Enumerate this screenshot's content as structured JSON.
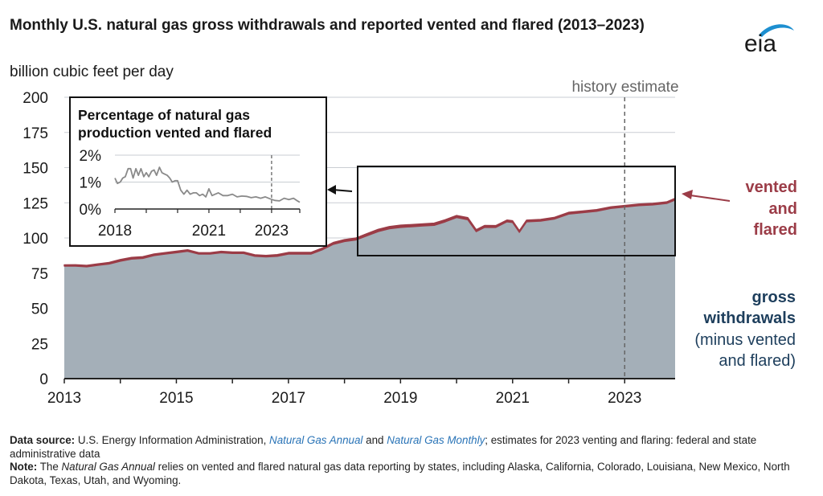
{
  "title": "Monthly U.S. natural gas gross withdrawals and reported vented and flared (2013–2023)",
  "subtitle": "billion cubic feet per day",
  "logo_text": "eia",
  "colors": {
    "area_fill": "#a4afb8",
    "vented_flared": "#9b3c47",
    "gross_label": "#1d3e5c",
    "grid": "#c9ced3",
    "axis": "#222222",
    "estimate_line": "#666666",
    "inset_line": "#8a8a8a",
    "link": "#2a74b7",
    "logo_swoosh": "#1d8fd0"
  },
  "annotations": {
    "history_estimate": "history estimate",
    "vented_flared": [
      "vented",
      "and",
      "flared"
    ],
    "gross_withdrawals": [
      "gross",
      "withdrawals",
      "(minus vented",
      "and flared)"
    ]
  },
  "footnotes": {
    "source_label": "Data source:",
    "source_prefix": "U.S. Energy Information Administration,",
    "source_link1": "Natural Gas Annual",
    "source_and": "and",
    "source_link2": "Natural Gas Monthly",
    "source_suffix": "; estimates for 2023 venting and flaring: federal and state administrative data",
    "note_label": "Note:",
    "note_prefix": "The",
    "note_italic": "Natural Gas Annual",
    "note_suffix": "relies on vented and flared natural gas data reporting by states, including Alaska, California, Colorado, Louisiana, New Mexico, North Dakota, Texas, Utah, and Wyoming."
  },
  "chart_data": [
    {
      "type": "area",
      "title": "Monthly U.S. natural gas gross withdrawals and reported vented and flared (2013–2023)",
      "ylabel": "billion cubic feet per day",
      "xlim": [
        2013.0,
        2023.9
      ],
      "ylim": [
        0,
        200
      ],
      "yticks": [
        0,
        25,
        50,
        75,
        100,
        125,
        150,
        175,
        200
      ],
      "xticks": [
        2013,
        2015,
        2017,
        2019,
        2021,
        2023
      ],
      "grid": true,
      "estimate_start": 2023.0,
      "series": [
        {
          "name": "gross withdrawals (minus vented and flared)",
          "x": [
            2013.0,
            2013.2,
            2013.4,
            2013.6,
            2013.8,
            2014.0,
            2014.2,
            2014.4,
            2014.6,
            2014.8,
            2015.0,
            2015.2,
            2015.4,
            2015.6,
            2015.8,
            2016.0,
            2016.2,
            2016.4,
            2016.6,
            2016.8,
            2017.0,
            2017.2,
            2017.4,
            2017.6,
            2017.8,
            2018.0,
            2018.2,
            2018.4,
            2018.6,
            2018.8,
            2019.0,
            2019.2,
            2019.4,
            2019.6,
            2019.8,
            2020.0,
            2020.2,
            2020.35,
            2020.5,
            2020.7,
            2020.9,
            2021.0,
            2021.12,
            2021.25,
            2021.5,
            2021.75,
            2022.0,
            2022.25,
            2022.5,
            2022.75,
            2023.0,
            2023.25,
            2023.5,
            2023.75,
            2023.9
          ],
          "values": [
            80.0,
            80.0,
            79.5,
            80.5,
            81.5,
            83.5,
            85.0,
            85.5,
            87.5,
            88.5,
            89.5,
            90.5,
            88.5,
            88.5,
            89.5,
            89.0,
            89.0,
            87.0,
            86.5,
            87.0,
            88.5,
            88.5,
            88.5,
            91.5,
            95.5,
            97.5,
            98.5,
            101.5,
            104.5,
            106.5,
            107.5,
            108.0,
            108.5,
            109.0,
            111.5,
            114.5,
            113.0,
            104.5,
            107.5,
            107.5,
            111.5,
            111.0,
            104.0,
            111.5,
            112.0,
            113.5,
            117.0,
            118.0,
            119.0,
            121.0,
            122.0,
            123.0,
            123.5,
            124.5,
            127.0
          ]
        },
        {
          "name": "vented and flared",
          "x": [
            2013.0,
            2014.0,
            2015.0,
            2016.0,
            2017.0,
            2018.0,
            2018.5,
            2019.0,
            2019.5,
            2020.0,
            2021.0,
            2022.0,
            2023.0,
            2023.9
          ],
          "values": [
            0.9,
            1.2,
            1.1,
            1.0,
            1.2,
            1.3,
            1.6,
            1.6,
            1.5,
            1.5,
            1.2,
            1.2,
            1.1,
            1.2
          ]
        }
      ]
    },
    {
      "type": "line",
      "title": "Percentage of natural gas production vented and flared",
      "xticks": [
        2018,
        2021,
        2023
      ],
      "yticks": [
        "0%",
        "1%",
        "2%"
      ],
      "xlim": [
        2018.0,
        2023.9
      ],
      "ylim": [
        0,
        2.0
      ],
      "grid": true,
      "estimate_start": 2023.0,
      "series": [
        {
          "name": "percent vented and flared",
          "x": [
            2018.0,
            2018.08,
            2018.17,
            2018.25,
            2018.33,
            2018.42,
            2018.5,
            2018.58,
            2018.67,
            2018.75,
            2018.83,
            2018.92,
            2019.0,
            2019.08,
            2019.17,
            2019.25,
            2019.33,
            2019.42,
            2019.5,
            2019.58,
            2019.67,
            2019.75,
            2019.83,
            2019.92,
            2020.0,
            2020.1,
            2020.2,
            2020.3,
            2020.4,
            2020.5,
            2020.6,
            2020.7,
            2020.8,
            2020.9,
            2021.0,
            2021.1,
            2021.2,
            2021.3,
            2021.45,
            2021.6,
            2021.75,
            2021.9,
            2022.05,
            2022.2,
            2022.35,
            2022.5,
            2022.65,
            2022.8,
            2022.95,
            2023.1,
            2023.25,
            2023.4,
            2023.55,
            2023.7,
            2023.8,
            2023.9
          ],
          "values": [
            1.15,
            0.95,
            1.0,
            1.15,
            1.2,
            1.5,
            1.5,
            1.15,
            1.5,
            1.25,
            1.5,
            1.2,
            1.35,
            1.2,
            1.4,
            1.45,
            1.25,
            1.55,
            1.35,
            1.3,
            1.25,
            1.15,
            1.0,
            1.05,
            1.05,
            0.7,
            0.55,
            0.7,
            0.55,
            0.6,
            0.6,
            0.5,
            0.55,
            0.45,
            0.75,
            0.5,
            0.55,
            0.6,
            0.5,
            0.5,
            0.55,
            0.45,
            0.48,
            0.47,
            0.42,
            0.45,
            0.4,
            0.45,
            0.38,
            0.32,
            0.3,
            0.4,
            0.35,
            0.4,
            0.32,
            0.25
          ]
        }
      ]
    }
  ]
}
